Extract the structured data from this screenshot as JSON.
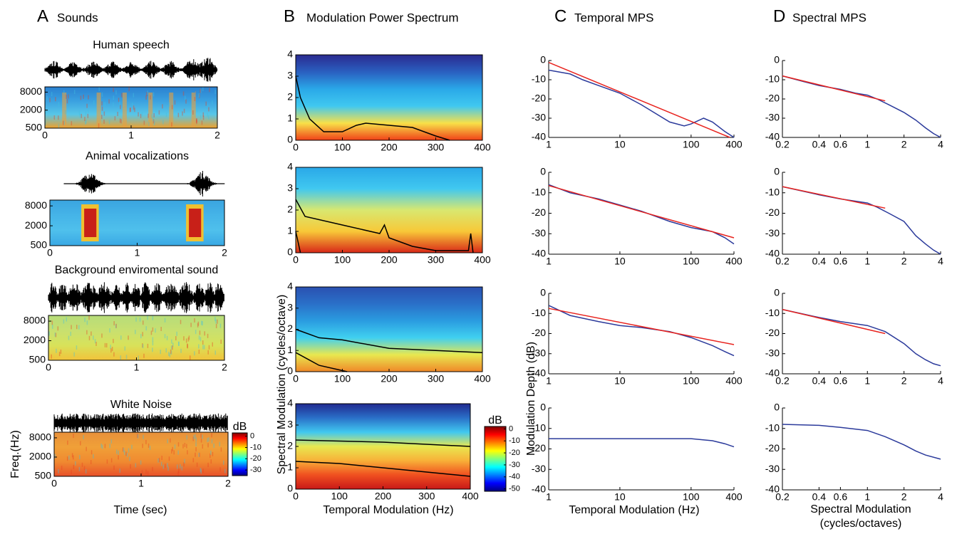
{
  "panels": [
    {
      "letter": "A",
      "title": "Sounds"
    },
    {
      "letter": "B",
      "title": "Modulation Power Spectrum"
    },
    {
      "letter": "C",
      "title": "Temporal MPS"
    },
    {
      "letter": "D",
      "title": "Spectral MPS"
    }
  ],
  "colorbars": [
    {
      "title": "dB",
      "ticks": [
        0,
        -10,
        -20,
        -30
      ],
      "lim": [
        -35,
        3
      ]
    },
    {
      "title": "dB",
      "ticks": [
        0,
        -10,
        -20,
        -30,
        -40,
        -50
      ],
      "lim": [
        -52,
        2
      ]
    }
  ],
  "chart_data": [
    {
      "type": "heatmap",
      "title": "Human speech",
      "xlim": [
        0,
        2
      ],
      "xticks": [
        0,
        1,
        2
      ],
      "ylim": [
        500,
        12000
      ],
      "yticks": [
        500,
        2000,
        8000
      ],
      "log_y": true
    },
    {
      "type": "heatmap",
      "title": "Animal vocalizations",
      "xlim": [
        0,
        2
      ],
      "xticks": [
        0,
        1,
        2
      ],
      "ylim": [
        500,
        12000
      ],
      "yticks": [
        500,
        2000,
        8000
      ],
      "log_y": true
    },
    {
      "type": "heatmap",
      "title": "Background enviromental sound",
      "xlim": [
        0,
        2
      ],
      "xticks": [
        0,
        1,
        2
      ],
      "ylim": [
        500,
        12000
      ],
      "yticks": [
        500,
        2000,
        8000
      ],
      "log_y": true
    },
    {
      "type": "heatmap",
      "title": "White Noise",
      "xlabel": "Time (sec)",
      "ylabel": "Freq.(Hz)",
      "xlim": [
        0,
        2
      ],
      "xticks": [
        0,
        1,
        2
      ],
      "ylim": [
        500,
        12000
      ],
      "yticks": [
        500,
        2000,
        8000
      ],
      "log_y": true
    },
    {
      "type": "heatmap",
      "xlim": [
        0,
        400
      ],
      "xticks": [
        0,
        100,
        200,
        300,
        400
      ],
      "ylim": [
        0,
        4
      ],
      "yticks": [
        0,
        1,
        2,
        3,
        4
      ],
      "series": [
        {
          "color": "#000000",
          "x": [
            0,
            10,
            30,
            60,
            100,
            130,
            150,
            200,
            250,
            300,
            330
          ],
          "values": [
            3,
            2,
            1,
            0.4,
            0.4,
            0.7,
            0.8,
            0.7,
            0.6,
            0.2,
            0
          ]
        }
      ]
    },
    {
      "type": "heatmap",
      "xlim": [
        0,
        400
      ],
      "xticks": [
        0,
        100,
        200,
        300,
        400
      ],
      "ylim": [
        0,
        4
      ],
      "yticks": [
        0,
        1,
        2,
        3,
        4
      ],
      "series": [
        {
          "color": "#000000",
          "x": [
            0,
            20,
            100,
            180,
            190,
            200,
            250,
            300,
            370,
            375,
            380
          ],
          "values": [
            2.5,
            1.7,
            1.3,
            0.9,
            1.3,
            0.7,
            0.3,
            0.1,
            0.1,
            0.9,
            0
          ]
        },
        {
          "color": "#000000",
          "x": [
            0,
            10
          ],
          "values": [
            1,
            0
          ]
        }
      ]
    },
    {
      "type": "heatmap",
      "ylabel": "Spectral Modulation (cycles/octave)",
      "xlim": [
        0,
        400
      ],
      "xticks": [
        0,
        100,
        200,
        300,
        400
      ],
      "ylim": [
        0,
        4
      ],
      "yticks": [
        0,
        1,
        2,
        3,
        4
      ],
      "series": [
        {
          "color": "#000000",
          "x": [
            0,
            50,
            100,
            200,
            300,
            400
          ],
          "values": [
            2,
            1.6,
            1.5,
            1.1,
            1,
            0.9
          ]
        },
        {
          "color": "#000000",
          "x": [
            0,
            50,
            110
          ],
          "values": [
            0.9,
            0.3,
            0
          ]
        }
      ]
    },
    {
      "type": "heatmap",
      "xlabel": "Temporal Modulation (Hz)",
      "xlim": [
        0,
        400
      ],
      "xticks": [
        0,
        100,
        200,
        300,
        400
      ],
      "ylim": [
        0,
        4
      ],
      "yticks": [
        0,
        1,
        2,
        3,
        4
      ],
      "series": [
        {
          "color": "#000000",
          "x": [
            0,
            200,
            400
          ],
          "values": [
            2.3,
            2.2,
            2
          ]
        },
        {
          "color": "#000000",
          "x": [
            0,
            100,
            200,
            300,
            400
          ],
          "values": [
            1.3,
            1.2,
            1,
            0.8,
            0.6
          ]
        }
      ]
    },
    {
      "type": "line",
      "log_x": true,
      "xlim": [
        1,
        400
      ],
      "xticks": [
        1,
        10,
        100,
        400
      ],
      "ylim": [
        -40,
        0
      ],
      "yticks": [
        0,
        -10,
        -20,
        -30,
        -40
      ],
      "series": [
        {
          "color": "#2b3a9b",
          "x": [
            1,
            2,
            3,
            5,
            10,
            20,
            50,
            80,
            100,
            150,
            200,
            300,
            400
          ],
          "values": [
            -5,
            -7,
            -10,
            -13,
            -17,
            -23,
            -32,
            -34,
            -33,
            -30,
            -32,
            -37,
            -40
          ]
        },
        {
          "color": "#e8231e",
          "x": [
            1,
            350
          ],
          "values": [
            -1,
            -40
          ]
        }
      ]
    },
    {
      "type": "line",
      "log_x": true,
      "xlim": [
        1,
        400
      ],
      "xticks": [
        1,
        10,
        100,
        400
      ],
      "ylim": [
        -40,
        0
      ],
      "yticks": [
        0,
        -10,
        -20,
        -30,
        -40
      ],
      "series": [
        {
          "color": "#2b3a9b",
          "x": [
            1,
            2,
            5,
            10,
            20,
            50,
            100,
            200,
            300,
            400
          ],
          "values": [
            -6,
            -10,
            -13,
            -16,
            -19,
            -24,
            -27,
            -29,
            -32,
            -35
          ]
        },
        {
          "color": "#e8231e",
          "x": [
            1,
            400
          ],
          "values": [
            -6.5,
            -32
          ]
        }
      ]
    },
    {
      "type": "line",
      "log_x": true,
      "xlim": [
        1,
        400
      ],
      "xticks": [
        1,
        10,
        100,
        400
      ],
      "ylim": [
        -40,
        0
      ],
      "yticks": [
        0,
        -10,
        -20,
        -30,
        -40
      ],
      "series": [
        {
          "color": "#2b3a9b",
          "x": [
            1,
            2,
            5,
            10,
            20,
            50,
            100,
            200,
            300,
            400
          ],
          "values": [
            -6,
            -11,
            -14,
            -16,
            -17,
            -19,
            -22,
            -26,
            -29,
            -31
          ]
        },
        {
          "color": "#e8231e",
          "x": [
            1,
            400
          ],
          "values": [
            -7.5,
            -25.5
          ]
        }
      ]
    },
    {
      "type": "line",
      "log_x": true,
      "xlabel": "Temporal Modulation (Hz)",
      "ylabel": "Modulation Depth (dB)",
      "xlim": [
        1,
        400
      ],
      "xticks": [
        1,
        10,
        100,
        400
      ],
      "ylim": [
        -40,
        0
      ],
      "yticks": [
        0,
        -10,
        -20,
        -30,
        -40
      ],
      "series": [
        {
          "color": "#2b3a9b",
          "x": [
            1,
            10,
            100,
            200,
            300,
            400
          ],
          "values": [
            -15,
            -15,
            -15,
            -16,
            -17.5,
            -19
          ]
        }
      ]
    },
    {
      "type": "line",
      "log_x": true,
      "xlim": [
        0.2,
        4
      ],
      "xticks": [
        0.2,
        0.4,
        0.6,
        1,
        2,
        4
      ],
      "ylim": [
        -40,
        0
      ],
      "yticks": [
        0,
        -10,
        -20,
        -30,
        -40
      ],
      "series": [
        {
          "color": "#2b3a9b",
          "x": [
            0.2,
            0.3,
            0.4,
            0.6,
            0.8,
            1,
            1.2,
            1.5,
            2,
            2.5,
            3,
            3.5,
            4
          ],
          "values": [
            -8,
            -11,
            -13,
            -15,
            -17,
            -18,
            -20,
            -23,
            -27,
            -31,
            -35,
            -38,
            -40
          ]
        },
        {
          "color": "#e8231e",
          "x": [
            0.2,
            1.4
          ],
          "values": [
            -8,
            -21
          ]
        }
      ]
    },
    {
      "type": "line",
      "log_x": true,
      "xlim": [
        0.2,
        4
      ],
      "xticks": [
        0.2,
        0.4,
        0.6,
        1,
        2,
        4
      ],
      "ylim": [
        -40,
        0
      ],
      "yticks": [
        0,
        -10,
        -20,
        -30,
        -40
      ],
      "series": [
        {
          "color": "#2b3a9b",
          "x": [
            0.2,
            0.4,
            0.6,
            1,
            1.2,
            1.5,
            2,
            2.5,
            3,
            3.5,
            4
          ],
          "values": [
            -7,
            -11,
            -13,
            -15,
            -17,
            -20,
            -24,
            -31,
            -35,
            -38,
            -40
          ]
        },
        {
          "color": "#e8231e",
          "x": [
            0.2,
            1.4
          ],
          "values": [
            -7,
            -17.5
          ]
        }
      ]
    },
    {
      "type": "line",
      "log_x": true,
      "xlim": [
        0.2,
        4
      ],
      "xticks": [
        0.2,
        0.4,
        0.6,
        1,
        2,
        4
      ],
      "ylim": [
        -40,
        0
      ],
      "yticks": [
        0,
        -10,
        -20,
        -30,
        -40
      ],
      "series": [
        {
          "color": "#2b3a9b",
          "x": [
            0.2,
            0.4,
            0.6,
            1,
            1.4,
            2,
            2.5,
            3,
            3.5,
            4
          ],
          "values": [
            -8,
            -12,
            -14,
            -16,
            -19,
            -25,
            -30,
            -33,
            -35,
            -36
          ]
        },
        {
          "color": "#e8231e",
          "x": [
            0.2,
            1.4
          ],
          "values": [
            -8,
            -20
          ]
        }
      ]
    },
    {
      "type": "line",
      "log_x": true,
      "xlabel_lines": [
        "Spectral Modulation",
        "(cycles/octaves)"
      ],
      "xlim": [
        0.2,
        4
      ],
      "xticks": [
        0.2,
        0.4,
        0.6,
        1,
        2,
        4
      ],
      "ylim": [
        -40,
        0
      ],
      "yticks": [
        0,
        -10,
        -20,
        -30,
        -40
      ],
      "series": [
        {
          "color": "#2b3a9b",
          "x": [
            0.2,
            0.4,
            0.6,
            1,
            1.4,
            2,
            2.5,
            3,
            4
          ],
          "values": [
            -8,
            -8.5,
            -9.5,
            -11,
            -14,
            -18,
            -21,
            -23,
            -25
          ]
        }
      ]
    }
  ]
}
